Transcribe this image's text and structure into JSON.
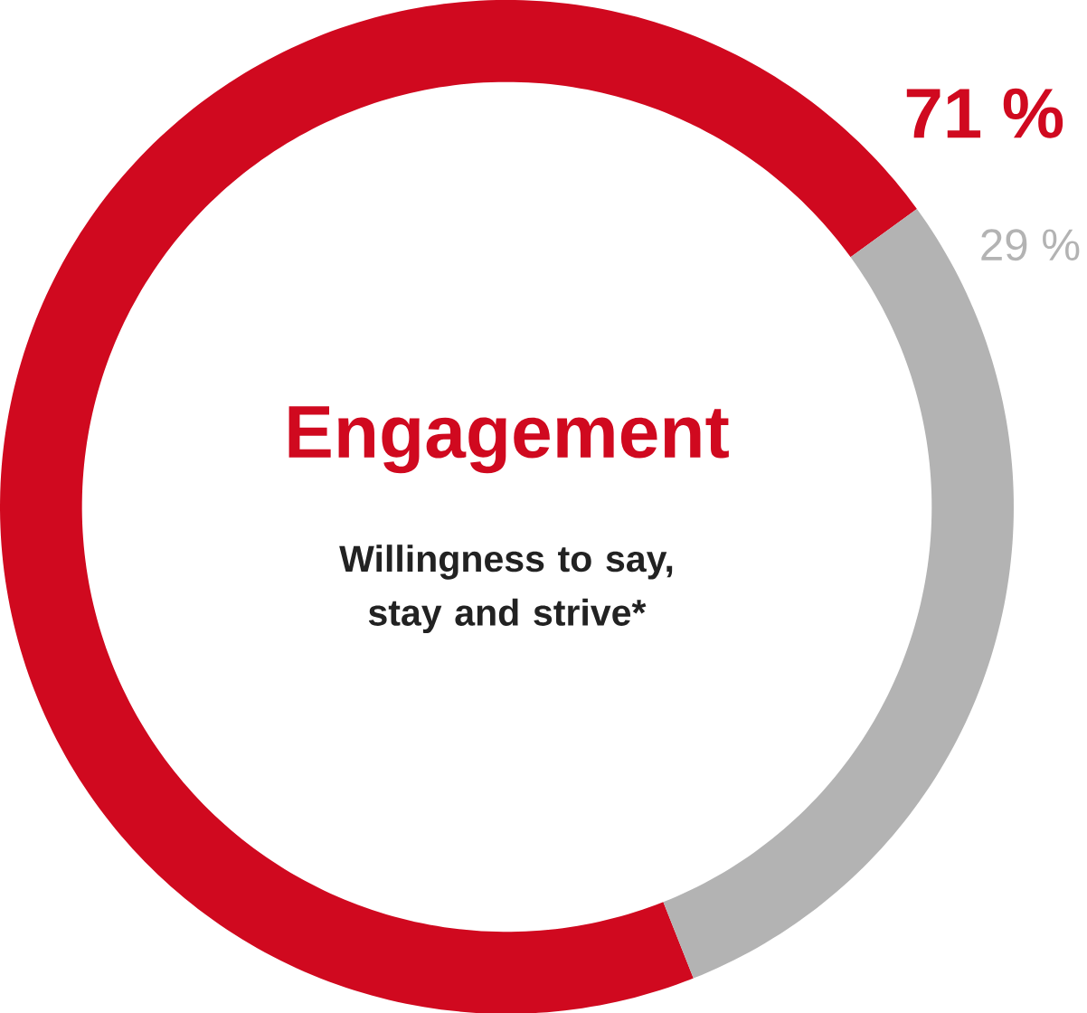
{
  "chart_data": {
    "type": "donut",
    "title": "Engagement",
    "subtitle": "Willingness to say, stay and strive*",
    "categories": [
      null,
      null
    ],
    "values": [
      71,
      29
    ],
    "colors": [
      "#d0091f",
      "#b3b3b3"
    ],
    "value_labels": [
      "71 %",
      "29 %"
    ]
  }
}
